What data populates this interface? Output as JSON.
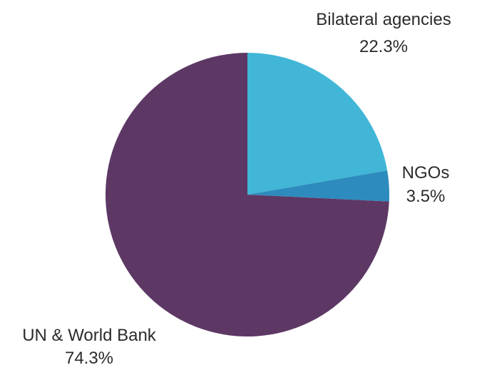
{
  "chart_data": {
    "type": "pie",
    "start_angle": "12 o'clock",
    "direction": "clockwise",
    "slices": [
      {
        "label": "Bilateral agencies",
        "value_label": "22.3%",
        "value": 22.3,
        "color": "#41b6d6"
      },
      {
        "label": "NGOs",
        "value_label": "3.5%",
        "value": 3.5,
        "color": "#2e8bbd"
      },
      {
        "label": "UN & World Bank",
        "value_label": "74.3%",
        "value": 74.3,
        "color": "#5d3865"
      }
    ]
  }
}
